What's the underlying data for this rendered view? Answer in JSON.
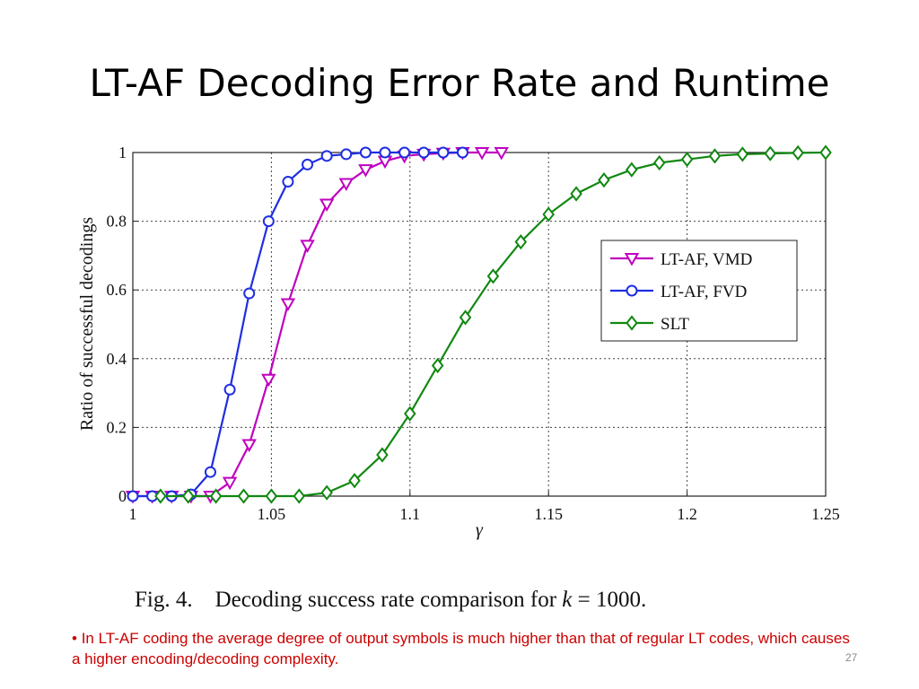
{
  "slide": {
    "title": "LT-AF Decoding Error Rate and Runtime",
    "caption_prefix": "Fig. 4.    Decoding success rate comparison for ",
    "caption_var": "k",
    "caption_suffix": " = 1000.",
    "bullet": "•",
    "note": "In LT-AF coding the average degree of output symbols is much higher than that of regular LT codes, which causes a higher encoding/decoding complexity.",
    "page_number": "27"
  },
  "chart_data": {
    "type": "line",
    "xlabel": "γ",
    "ylabel": "Ratio of successful decodings",
    "xlim": [
      1,
      1.25
    ],
    "ylim": [
      0,
      1
    ],
    "x_ticks": [
      1,
      1.05,
      1.1,
      1.15,
      1.2,
      1.25
    ],
    "x_tick_labels": [
      "1",
      "1.05",
      "1.1",
      "1.15",
      "1.2",
      "1.25"
    ],
    "y_ticks": [
      0,
      0.2,
      0.4,
      0.6,
      0.8,
      1
    ],
    "y_tick_labels": [
      "0",
      "0.2",
      "0.4",
      "0.6",
      "0.8",
      "1"
    ],
    "grid": true,
    "legend_position": "right",
    "series": [
      {
        "name": "LT-AF, VMD",
        "color": "#c000c0",
        "marker": "triangle-down",
        "x": [
          1.0,
          1.007,
          1.014,
          1.021,
          1.028,
          1.035,
          1.042,
          1.049,
          1.056,
          1.063,
          1.07,
          1.077,
          1.084,
          1.091,
          1.098,
          1.105,
          1.112,
          1.119,
          1.126,
          1.133
        ],
        "y": [
          0.0,
          0.0,
          0.0,
          0.0,
          0.0,
          0.04,
          0.15,
          0.34,
          0.56,
          0.73,
          0.85,
          0.91,
          0.95,
          0.975,
          0.99,
          0.995,
          0.998,
          1.0,
          1.0,
          1.0
        ]
      },
      {
        "name": "LT-AF, FVD",
        "color": "#1f2ee0",
        "marker": "circle",
        "x": [
          1.0,
          1.007,
          1.014,
          1.021,
          1.028,
          1.035,
          1.042,
          1.049,
          1.056,
          1.063,
          1.07,
          1.077,
          1.084,
          1.091,
          1.098,
          1.105,
          1.112,
          1.119
        ],
        "y": [
          0.0,
          0.0,
          0.0,
          0.005,
          0.07,
          0.31,
          0.59,
          0.8,
          0.915,
          0.965,
          0.99,
          0.995,
          1.0,
          1.0,
          1.0,
          1.0,
          1.0,
          1.0
        ]
      },
      {
        "name": "SLT",
        "color": "#118811",
        "marker": "diamond",
        "x": [
          1.01,
          1.02,
          1.03,
          1.04,
          1.05,
          1.06,
          1.07,
          1.08,
          1.09,
          1.1,
          1.11,
          1.12,
          1.13,
          1.14,
          1.15,
          1.16,
          1.17,
          1.18,
          1.19,
          1.2,
          1.21,
          1.22,
          1.23,
          1.24,
          1.25
        ],
        "y": [
          0.0,
          0.0,
          0.0,
          0.0,
          0.0,
          0.0,
          0.01,
          0.045,
          0.12,
          0.24,
          0.38,
          0.52,
          0.64,
          0.74,
          0.82,
          0.88,
          0.92,
          0.95,
          0.97,
          0.98,
          0.99,
          0.995,
          0.997,
          0.999,
          1.0
        ]
      }
    ]
  }
}
